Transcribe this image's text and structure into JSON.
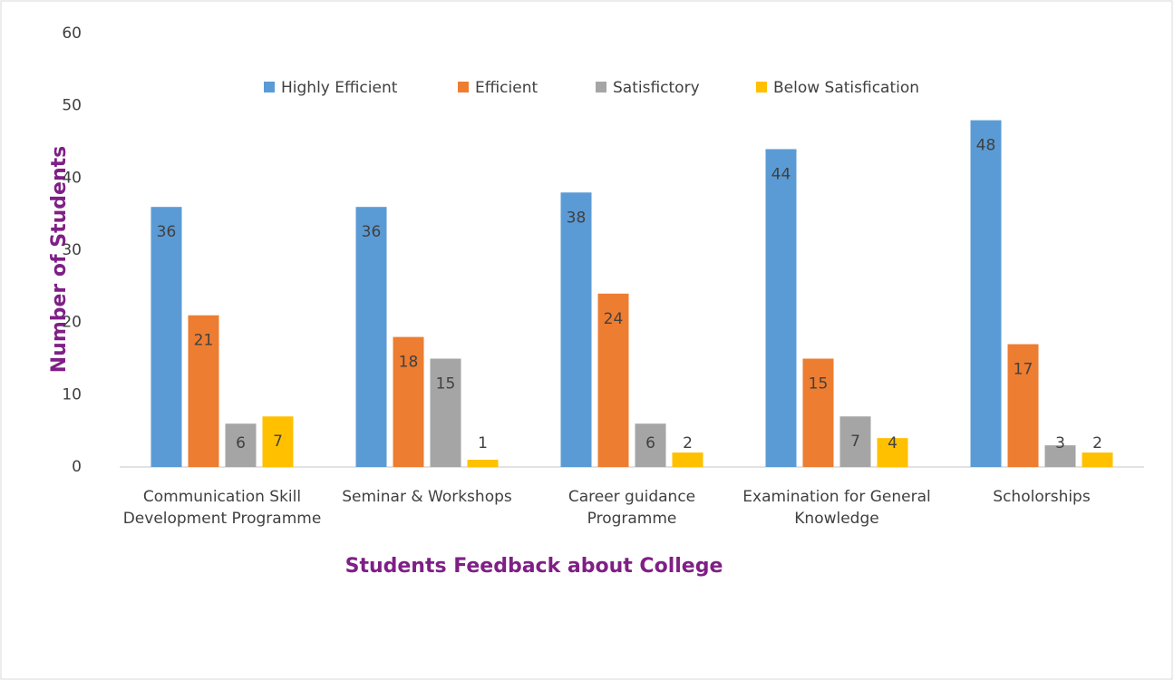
{
  "chart_data": {
    "type": "bar",
    "x_label": "Students Feedback about College",
    "y_label": "Number of Students",
    "categories": [
      "Communication Skill Development Programme",
      "Seminar & Workshops",
      "Career guidance Programme",
      "Examination for General Knowledge",
      "Scholorships"
    ],
    "series": [
      {
        "name": "Highly Efficient",
        "color": "#5b9bd5",
        "values": [
          36,
          36,
          38,
          44,
          48
        ]
      },
      {
        "name": "Efficient",
        "color": "#ed7d31",
        "values": [
          21,
          18,
          24,
          15,
          17
        ]
      },
      {
        "name": "Satisfictory",
        "color": "#a5a5a5",
        "values": [
          6,
          15,
          6,
          7,
          3
        ]
      },
      {
        "name": "Below Satisfication",
        "color": "#ffc000",
        "values": [
          7,
          1,
          2,
          4,
          2
        ]
      }
    ],
    "ylim": [
      0,
      60
    ],
    "yticks": [
      0,
      10,
      20,
      30,
      40,
      50,
      60
    ],
    "grid": false,
    "legend": "top"
  }
}
